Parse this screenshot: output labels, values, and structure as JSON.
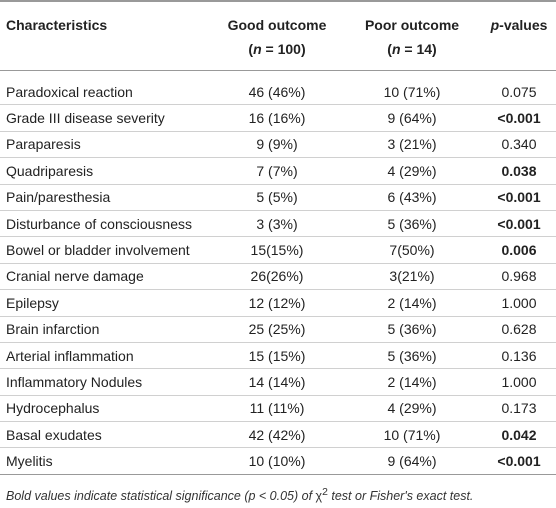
{
  "table": {
    "header": [
      {
        "line1": "Characteristics"
      },
      {
        "line1": "Good outcome",
        "line2": [
          "(",
          "n",
          " = 100)"
        ]
      },
      {
        "line1": "Poor outcome",
        "line2": [
          "(",
          "n",
          " = 14)"
        ]
      },
      {
        "line1": [
          "p",
          "-values"
        ]
      }
    ],
    "rows": [
      [
        "Paradoxical reaction",
        "46 (46%)",
        "10 (71%)",
        "0.075"
      ],
      [
        "Grade III disease severity",
        "16 (16%)",
        "9 (64%)",
        "<0.001"
      ],
      [
        "Paraparesis",
        "9 (9%)",
        "3 (21%)",
        "0.340"
      ],
      [
        "Quadriparesis",
        "7 (7%)",
        "4 (29%)",
        "0.038"
      ],
      [
        "Pain/paresthesia",
        "5 (5%)",
        "6 (43%)",
        "<0.001"
      ],
      [
        "Disturbance of consciousness",
        "3 (3%)",
        "5 (36%)",
        "<0.001"
      ],
      [
        "Bowel or bladder involvement",
        "15(15%)",
        "7(50%)",
        "0.006"
      ],
      [
        "Cranial nerve damage",
        "26(26%)",
        "3(21%)",
        "0.968"
      ],
      [
        "Epilepsy",
        "12 (12%)",
        "2 (14%)",
        "1.000"
      ],
      [
        "Brain infarction",
        "25 (25%)",
        "5 (36%)",
        "0.628"
      ],
      [
        "Arterial inflammation",
        "15 (15%)",
        "5 (36%)",
        "0.136"
      ],
      [
        "Inflammatory Nodules",
        "14 (14%)",
        "2 (14%)",
        "1.000"
      ],
      [
        "Hydrocephalus",
        "11 (11%)",
        "4 (29%)",
        "0.173"
      ],
      [
        "Basal exudates",
        "42 (42%)",
        "10 (71%)",
        "0.042"
      ],
      [
        "Myelitis",
        "10 (10%)",
        "9 (64%)",
        "<0.001"
      ]
    ],
    "bold_p": [
      false,
      true,
      false,
      true,
      true,
      true,
      true,
      false,
      false,
      false,
      false,
      false,
      false,
      true,
      true
    ]
  },
  "footnote": [
    "Bold values indicate statistical significance (",
    "p",
    " < 0.05) of ",
    "χ",
    "2",
    " test or Fisher's exact test."
  ]
}
